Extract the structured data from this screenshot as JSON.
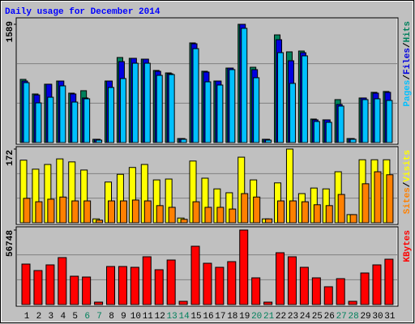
{
  "title": "Daily usage for December 2014",
  "legend_separator": "/",
  "categories": [
    "1",
    "2",
    "3",
    "4",
    "5",
    "6",
    "7",
    "8",
    "9",
    "10",
    "11",
    "12",
    "13",
    "14",
    "15",
    "16",
    "17",
    "18",
    "19",
    "20",
    "21",
    "22",
    "23",
    "24",
    "25",
    "26",
    "27",
    "28",
    "29",
    "30",
    "31"
  ],
  "category_colors": [
    "#000000",
    "#000000",
    "#000000",
    "#000000",
    "#000000",
    "#00805c",
    "#00805c",
    "#000000",
    "#000000",
    "#000000",
    "#000000",
    "#000000",
    "#00805c",
    "#00805c",
    "#000000",
    "#000000",
    "#000000",
    "#000000",
    "#000000",
    "#00805c",
    "#00805c",
    "#000000",
    "#000000",
    "#000000",
    "#000000",
    "#000000",
    "#00805c",
    "#00805c",
    "#000000",
    "#000000",
    "#000000"
  ],
  "chart_data": [
    {
      "type": "bar",
      "ylim": [
        0,
        1589
      ],
      "yticks": [
        1589
      ],
      "grid": true,
      "series": [
        {
          "name": "Hits",
          "color": "#00805c",
          "values": [
            849,
            653,
            784,
            827,
            664,
            697,
            44,
            827,
            1143,
            1132,
            1121,
            969,
            936,
            54,
            1339,
            958,
            827,
            1001,
            1589,
            1012,
            44,
            1447,
            1219,
            1230,
            316,
            305,
            577,
            54,
            599,
            675,
            686
          ]
        },
        {
          "name": "Files",
          "color": "#0000e0",
          "values": [
            827,
            640,
            784,
            827,
            653,
            599,
            44,
            827,
            1088,
            1132,
            1121,
            958,
            925,
            54,
            1328,
            947,
            827,
            1001,
            1589,
            980,
            44,
            1382,
            1099,
            1208,
            305,
            305,
            512,
            54,
            599,
            664,
            675
          ]
        },
        {
          "name": "Pages",
          "color": "#00c0ff",
          "values": [
            805,
            533,
            609,
            762,
            544,
            588,
            33,
            740,
            860,
            1066,
            1066,
            903,
            914,
            44,
            1262,
            816,
            773,
            980,
            1535,
            871,
            33,
            1208,
            795,
            1165,
            283,
            272,
            490,
            44,
            577,
            588,
            566
          ]
        }
      ]
    },
    {
      "type": "bar",
      "ylim": [
        0,
        172
      ],
      "yticks": [
        172
      ],
      "grid": true,
      "series": [
        {
          "name": "Visits",
          "color": "#ffff00",
          "values": [
            146,
            125,
            136,
            149,
            142,
            123,
            9,
            95,
            113,
            129,
            136,
            100,
            102,
            11,
            144,
            104,
            79,
            70,
            153,
            100,
            9,
            93,
            172,
            68,
            81,
            79,
            119,
            19,
            147,
            147,
            147
          ]
        },
        {
          "name": "Sites",
          "color": "#ff8000",
          "values": [
            57,
            49,
            55,
            60,
            51,
            51,
            6,
            51,
            51,
            53,
            51,
            40,
            36,
            8,
            49,
            36,
            36,
            32,
            68,
            60,
            9,
            51,
            51,
            49,
            42,
            40,
            66,
            19,
            91,
            119,
            112
          ]
        }
      ]
    },
    {
      "type": "bar",
      "ylim": [
        0,
        56748
      ],
      "yticks": [
        56748
      ],
      "grid": true,
      "series": [
        {
          "name": "KBytes",
          "color": "#ff0000",
          "values": [
            30842,
            25907,
            30225,
            35776,
            21589,
            20972,
            1851,
            28991,
            28991,
            28374,
            36393,
            26524,
            33926,
            2467,
            44412,
            31459,
            28374,
            32692,
            56748,
            20355,
            1851,
            39477,
            36393,
            28374,
            20355,
            13570,
            19739,
            2467,
            24056,
            30225,
            34542
          ]
        }
      ]
    }
  ]
}
